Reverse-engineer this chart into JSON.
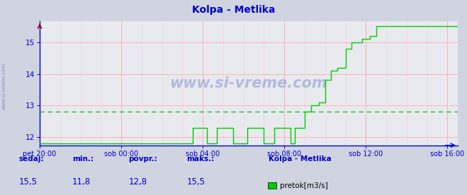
{
  "title": "Kolpa - Metlika",
  "title_color": "#0000cc",
  "bg_color": "#d0d4e0",
  "plot_bg_color": "#e8eaf0",
  "grid_major_color": "#ffaaaa",
  "grid_minor_color": "#ffd0d0",
  "x_labels": [
    "pet 20:00",
    "sob 00:00",
    "sob 04:00",
    "sob 08:00",
    "sob 12:00",
    "sob 16:00"
  ],
  "x_tick_pos": [
    0,
    4,
    8,
    12,
    16,
    20
  ],
  "ylim": [
    11.75,
    15.65
  ],
  "yticks": [
    12,
    13,
    14,
    15
  ],
  "xlim": [
    0,
    20.5
  ],
  "avg_line_y": 12.8,
  "avg_line_color": "#00bb00",
  "line_color": "#00cc00",
  "axis_color": "#0000cc",
  "tick_color": "#0000cc",
  "spine_color": "#0000cc",
  "watermark": "www.si-vreme.com",
  "watermark_color": "#2244aa",
  "watermark_alpha": 0.28,
  "ylabel_text": "www.si-vreme.com",
  "ylabel_color": "#3355aa",
  "stats_labels": [
    "sedaj:",
    "min.:",
    "povpr.:",
    "maks.:"
  ],
  "stats_values": [
    "15,5",
    "11,8",
    "12,8",
    "15,5"
  ],
  "legend_title": "Kolpa - Metlika",
  "legend_label": "pretok[m3/s]",
  "legend_color": "#00cc00"
}
